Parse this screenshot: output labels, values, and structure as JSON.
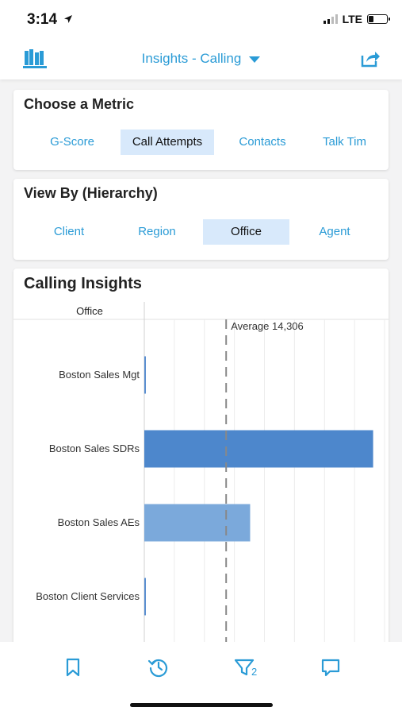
{
  "status_bar": {
    "time": "3:14",
    "carrier": "LTE",
    "battery_level": 0.3
  },
  "header": {
    "title": "Insights - Calling",
    "left_icon": "books-icon",
    "right_icon": "share-icon"
  },
  "metric": {
    "title": "Choose a Metric",
    "options": [
      "G-Score",
      "Call Attempts",
      "Contacts",
      "Talk Tim"
    ],
    "selected": "Call Attempts"
  },
  "hierarchy": {
    "title": "View By (Hierarchy)",
    "options": [
      "Client",
      "Region",
      "Office",
      "Agent"
    ],
    "selected": "Office"
  },
  "insights": {
    "title": "Calling Insights"
  },
  "chart_data": {
    "type": "bar",
    "orientation": "horizontal",
    "category_axis_label": "Office",
    "categories": [
      "Boston Sales Mgt",
      "Boston Sales SDRs",
      "Boston Sales AEs",
      "Boston Client Services"
    ],
    "values": [
      200,
      40000,
      18500,
      200
    ],
    "colors": [
      "#5b8fd0",
      "#4d87cc",
      "#7ba9db",
      "#5b8fd0"
    ],
    "xlim": [
      0,
      42000
    ],
    "reference_line": {
      "label": "Average 14,306",
      "value": 14306
    },
    "grid": true
  },
  "tabbar": {
    "items": [
      {
        "name": "bookmark-icon"
      },
      {
        "name": "history-icon"
      },
      {
        "name": "filter-icon",
        "badge": "2"
      },
      {
        "name": "comment-icon"
      }
    ]
  }
}
